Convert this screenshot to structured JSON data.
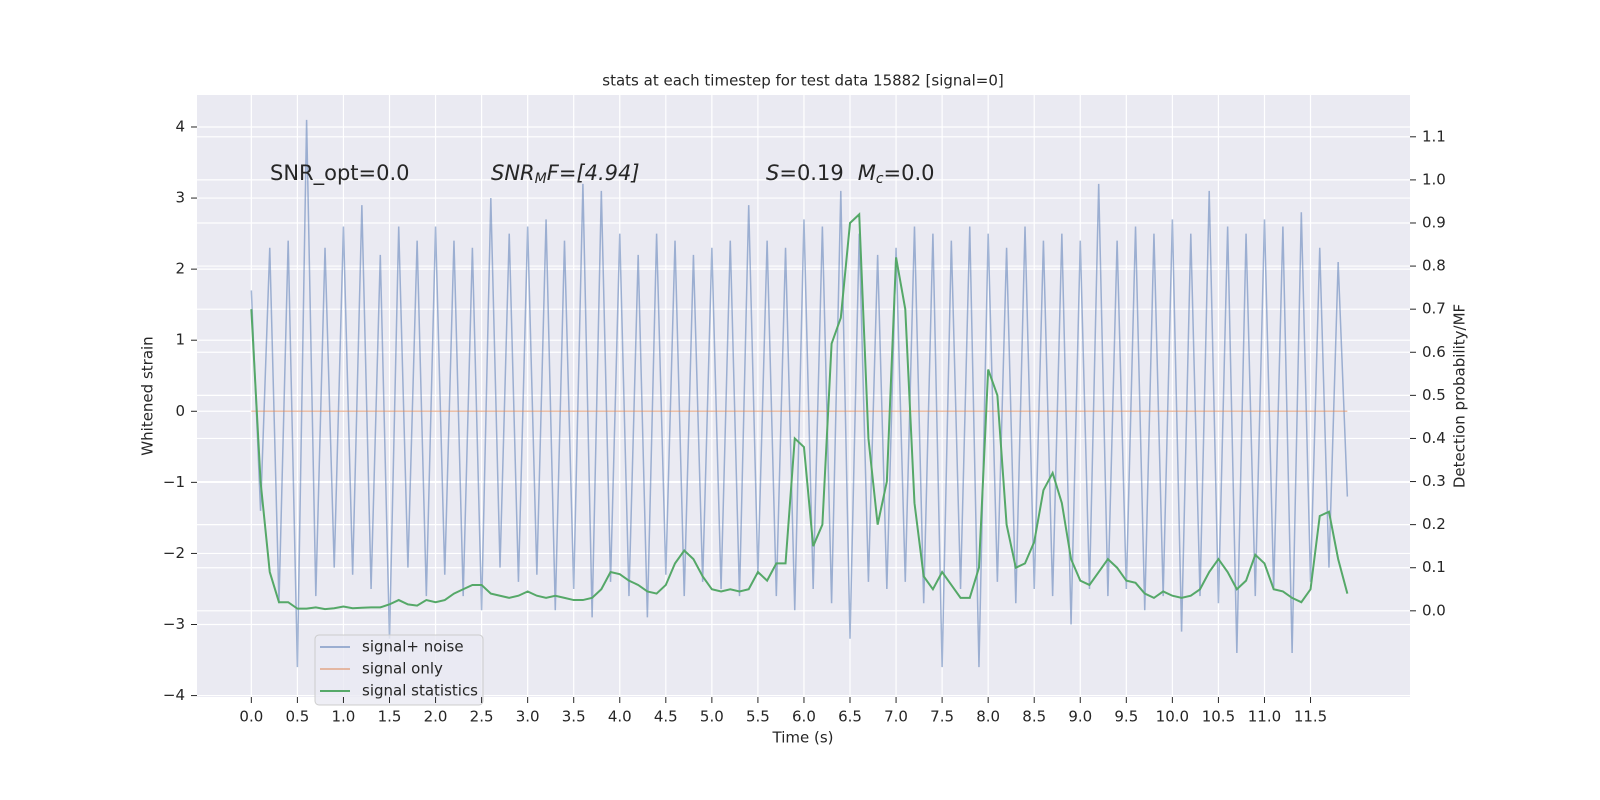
{
  "chart_data": {
    "type": "line",
    "title": "stats at each timestep for test data 15882 [signal=0]",
    "xlabel": "Time (s)",
    "ylabel": "Whitened strain",
    "y2label": "Detection probability/MF",
    "annotations": [
      "SNR_opt=0.0",
      [
        "SNR",
        "M",
        "F=[4.94]"
      ],
      [
        "S",
        "=0.19",
        "M",
        "c",
        "=0.0"
      ]
    ],
    "grid": true,
    "legend": "lower left",
    "background": "#eaeaf2",
    "xlim": [
      -0.59,
      12.58
    ],
    "xticks": [
      {
        "value": 0,
        "label": "0.0"
      },
      0.5,
      {
        "value": 1,
        "label": "1.0"
      },
      1.5,
      {
        "value": 2,
        "label": "2.0"
      },
      2.5,
      {
        "value": 3,
        "label": "3.0"
      },
      3.5,
      {
        "value": 4,
        "label": "4.0"
      },
      4.5,
      {
        "value": 5,
        "label": "5.0"
      },
      5.5,
      {
        "value": 6,
        "label": "6.0"
      },
      6.5,
      {
        "value": 7,
        "label": "7.0"
      },
      7.5,
      {
        "value": 8,
        "label": "8.0"
      },
      8.5,
      {
        "value": 9,
        "label": "9.0"
      },
      9.5,
      {
        "value": 10,
        "label": "10.0"
      },
      10.5,
      {
        "value": 11,
        "label": "11.0"
      },
      11.5
    ],
    "ylim": [
      -4.02,
      4.45
    ],
    "yticks": [
      {
        "value": -4,
        "label": "−4"
      },
      {
        "value": -3,
        "label": "−3"
      },
      {
        "value": -2,
        "label": "−2"
      },
      {
        "value": -1,
        "label": "−1"
      },
      0,
      1,
      2,
      3,
      4
    ],
    "y2lim": [
      -0.2,
      1.197
    ],
    "y2ticks": [
      {
        "value": 0,
        "label": "0.0"
      },
      0.1,
      0.2,
      0.3,
      0.4,
      0.5,
      0.6,
      0.7,
      0.8,
      0.9,
      {
        "value": 1,
        "label": "1.0"
      },
      1.1
    ],
    "x": [
      0,
      0.1,
      0.2,
      0.3,
      0.4,
      0.5,
      0.6,
      0.7,
      0.8,
      0.9,
      1,
      1.1,
      1.2,
      1.3,
      1.4,
      1.5,
      1.6,
      1.7,
      1.8,
      1.9,
      2,
      2.1,
      2.2,
      2.3,
      2.4,
      2.5,
      2.6,
      2.7,
      2.8,
      2.9,
      3,
      3.1,
      3.2,
      3.3,
      3.4,
      3.5,
      3.6,
      3.7,
      3.8,
      3.9,
      4,
      4.1,
      4.2,
      4.3,
      4.4,
      4.5,
      4.6,
      4.7,
      4.8,
      4.9,
      5,
      5.1,
      5.2,
      5.3,
      5.4,
      5.5,
      5.6,
      5.7,
      5.8,
      5.9,
      6,
      6.1,
      6.2,
      6.3,
      6.4,
      6.5,
      6.6,
      6.7,
      6.8,
      6.9,
      7,
      7.1,
      7.2,
      7.3,
      7.4,
      7.5,
      7.6,
      7.7,
      7.8,
      7.9,
      8,
      8.1,
      8.2,
      8.3,
      8.4,
      8.5,
      8.6,
      8.7,
      8.8,
      8.9,
      9,
      9.1,
      9.2,
      9.3,
      9.4,
      9.5,
      9.6,
      9.7,
      9.8,
      9.9,
      10,
      10.1,
      10.2,
      10.3,
      10.4,
      10.5,
      10.6,
      10.7,
      10.8,
      10.9,
      11,
      11.1,
      11.2,
      11.3,
      11.4,
      11.5,
      11.6,
      11.7,
      11.8,
      11.9
    ],
    "series": [
      {
        "name": "signal+ noise",
        "color": "#4c72b0",
        "opacity": 0.5,
        "values": [
          1.7,
          -1.4,
          2.3,
          -2.7,
          2.4,
          -3.6,
          4.1,
          -2.6,
          2.3,
          -2.2,
          2.6,
          -2.3,
          2.9,
          -2.5,
          2.2,
          -3.2,
          2.6,
          -2.2,
          2.4,
          -2.6,
          2.6,
          -2.3,
          2.4,
          -2.6,
          2.3,
          -2.8,
          3.0,
          -2.2,
          2.5,
          -2.4,
          2.6,
          -2.3,
          2.7,
          -2.8,
          2.4,
          -2.5,
          3.2,
          -2.9,
          3.1,
          -2.4,
          2.5,
          -2.6,
          2.2,
          -2.9,
          2.5,
          -2.3,
          2.4,
          -2.6,
          2.2,
          -2.4,
          2.3,
          -2.5,
          2.4,
          -2.6,
          2.9,
          -2.3,
          2.4,
          -2.6,
          2.3,
          -2.8,
          2.7,
          -2.5,
          2.6,
          -2.7,
          3.1,
          -3.2,
          2.5,
          -2.4,
          2.2,
          -2.5,
          2.3,
          -2.4,
          2.6,
          -2.7,
          2.5,
          -3.6,
          2.4,
          -2.5,
          2.6,
          -3.6,
          2.5,
          -2.4,
          2.3,
          -2.7,
          2.6,
          -2.5,
          2.4,
          -2.6,
          2.5,
          -3.0,
          2.4,
          -2.5,
          3.2,
          -2.6,
          2.4,
          -2.5,
          2.6,
          -2.8,
          2.5,
          -2.6,
          2.7,
          -3.1,
          2.5,
          -2.6,
          3.1,
          -2.7,
          2.6,
          -3.4,
          2.5,
          -2.6,
          2.7,
          -2.5,
          2.6,
          -3.4,
          2.8,
          -2.4,
          2.3,
          -2.2,
          2.1,
          -1.2
        ]
      },
      {
        "name": "signal only",
        "color": "#dd8452",
        "opacity": 0.5,
        "values": [
          0,
          0,
          0,
          0,
          0,
          0,
          0,
          0,
          0,
          0,
          0,
          0,
          0,
          0,
          0,
          0,
          0,
          0,
          0,
          0,
          0,
          0,
          0,
          0,
          0,
          0,
          0,
          0,
          0,
          0,
          0,
          0,
          0,
          0,
          0,
          0,
          0,
          0,
          0,
          0,
          0,
          0,
          0,
          0,
          0,
          0,
          0,
          0,
          0,
          0,
          0,
          0,
          0,
          0,
          0,
          0,
          0,
          0,
          0,
          0,
          0,
          0,
          0,
          0,
          0,
          0,
          0,
          0,
          0,
          0,
          0,
          0,
          0,
          0,
          0,
          0,
          0,
          0,
          0,
          0,
          0,
          0,
          0,
          0,
          0,
          0,
          0,
          0,
          0,
          0,
          0,
          0,
          0,
          0,
          0,
          0,
          0,
          0,
          0,
          0,
          0,
          0,
          0,
          0,
          0,
          0,
          0,
          0,
          0,
          0,
          0,
          0,
          0,
          0,
          0,
          0,
          0,
          0,
          0,
          0
        ]
      },
      {
        "name": "signal statistics",
        "color": "#55a868",
        "opacity": 1,
        "axis": "y2",
        "values": [
          0.7,
          0.3,
          0.09,
          0.02,
          0.02,
          0.005,
          0.005,
          0.008,
          0.004,
          0.006,
          0.01,
          0.006,
          0.007,
          0.008,
          0.008,
          0.015,
          0.025,
          0.015,
          0.012,
          0.025,
          0.02,
          0.025,
          0.04,
          0.05,
          0.06,
          0.06,
          0.04,
          0.035,
          0.03,
          0.035,
          0.045,
          0.035,
          0.03,
          0.035,
          0.03,
          0.025,
          0.025,
          0.03,
          0.05,
          0.09,
          0.085,
          0.07,
          0.06,
          0.045,
          0.04,
          0.06,
          0.11,
          0.14,
          0.12,
          0.08,
          0.05,
          0.045,
          0.05,
          0.045,
          0.05,
          0.09,
          0.07,
          0.11,
          0.11,
          0.4,
          0.38,
          0.15,
          0.2,
          0.62,
          0.68,
          0.9,
          0.92,
          0.4,
          0.2,
          0.3,
          0.82,
          0.7,
          0.25,
          0.08,
          0.05,
          0.09,
          0.06,
          0.03,
          0.03,
          0.1,
          0.56,
          0.5,
          0.2,
          0.1,
          0.11,
          0.16,
          0.28,
          0.32,
          0.25,
          0.12,
          0.07,
          0.06,
          0.09,
          0.12,
          0.1,
          0.07,
          0.065,
          0.04,
          0.03,
          0.045,
          0.035,
          0.03,
          0.035,
          0.05,
          0.09,
          0.12,
          0.09,
          0.05,
          0.07,
          0.13,
          0.11,
          0.05,
          0.045,
          0.03,
          0.02,
          0.05,
          0.22,
          0.23,
          0.12,
          0.04
        ]
      }
    ]
  }
}
